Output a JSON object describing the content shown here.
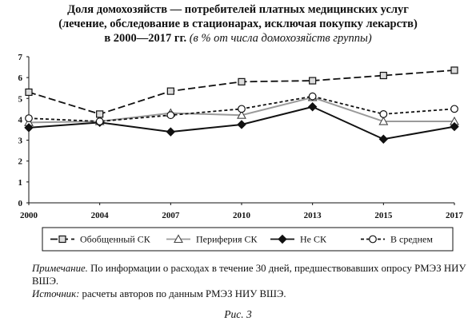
{
  "title": {
    "line1": "Доля домохозяйств — потребителей платных медицинских услуг",
    "line2": "(лечение, обследование в стационарах, исключая покупку лекарств)",
    "line3": "в 2000—2017 гг.",
    "unit": "(в % от числа домохозяйств группы)"
  },
  "chart_data": {
    "type": "line",
    "title": "Доля домохозяйств — потребителей платных медицинских услуг (лечение, обследование в стационарах, исключая покупку лекарств) в 2000—2017 гг. (в % от числа домохозяйств группы)",
    "x": [
      "2000",
      "2004",
      "2007",
      "2010",
      "2013",
      "2015",
      "2017"
    ],
    "ylim": [
      0,
      7
    ],
    "yticks": [
      0,
      1,
      2,
      3,
      4,
      5,
      6,
      7
    ],
    "grid": false,
    "legend_position": "bottom",
    "series": [
      {
        "name": "Обобщенный СК",
        "values": [
          5.3,
          4.25,
          5.35,
          5.8,
          5.85,
          6.1,
          6.35
        ],
        "color": "#111111",
        "dash": "long-dash",
        "marker": "square"
      },
      {
        "name": "Периферия СК",
        "values": [
          3.85,
          3.9,
          4.3,
          4.2,
          5.05,
          3.9,
          3.9
        ],
        "color": "#9a9a9a",
        "dash": "solid",
        "marker": "triangle"
      },
      {
        "name": "Не СК",
        "values": [
          3.6,
          3.85,
          3.4,
          3.75,
          4.6,
          3.05,
          3.65
        ],
        "color": "#111111",
        "dash": "solid",
        "marker": "diamond"
      },
      {
        "name": "В среднем",
        "values": [
          4.05,
          3.9,
          4.2,
          4.5,
          5.1,
          4.25,
          4.5
        ],
        "color": "#111111",
        "dash": "short-dash",
        "marker": "circle"
      }
    ]
  },
  "notes": {
    "note_label": "Примечание.",
    "note_text": "По информации о расходах в течение 30 дней, предшествовавших опросу РМЭЗ НИУ ВШЭ.",
    "source_label": "Источник:",
    "source_text": "расчеты авторов по данным РМЭЗ НИУ ВШЭ."
  },
  "caption": "Рис. 3"
}
